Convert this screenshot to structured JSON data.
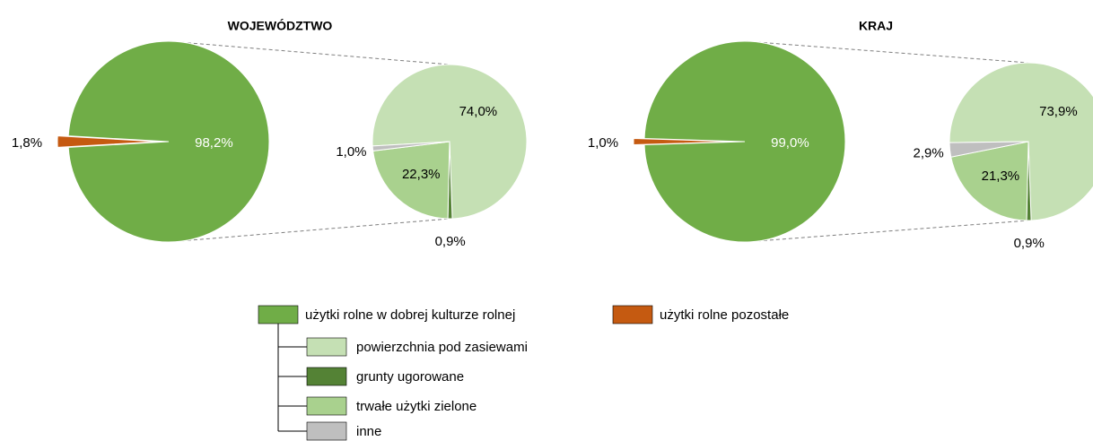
{
  "chart_data": {
    "type": "pie-of-pie",
    "categories": [
      "użytki rolne w dobrej kulturze rolnej",
      "użytki rolne pozostałe"
    ],
    "colors": [
      "#70ad47",
      "#c55a11"
    ],
    "sub_categories": [
      "powierzchnia pod zasiewami",
      "grunty ugorowane",
      "trwałe użytki zielone",
      "inne"
    ],
    "sub_colors": [
      "#c5e0b4",
      "#548235",
      "#a9d18e",
      "#bfbfbf"
    ],
    "charts": [
      {
        "title": "WOJEWÓDZTWO",
        "values": [
          98.2,
          1.8
        ],
        "value_labels": [
          "98,2%",
          "1,8%"
        ],
        "sub_values": [
          74.0,
          0.9,
          22.3,
          1.0
        ],
        "sub_value_labels": [
          "74,0%",
          "0,9%",
          "22,3%",
          "1,0%"
        ]
      },
      {
        "title": "KRAJ",
        "values": [
          99.0,
          1.0
        ],
        "value_labels": [
          "99,0%",
          "1,0%"
        ],
        "sub_values": [
          73.9,
          0.9,
          21.3,
          2.9
        ],
        "sub_value_labels": [
          "73,9%",
          "0,9%",
          "21,3%",
          "2,9%"
        ]
      }
    ]
  }
}
